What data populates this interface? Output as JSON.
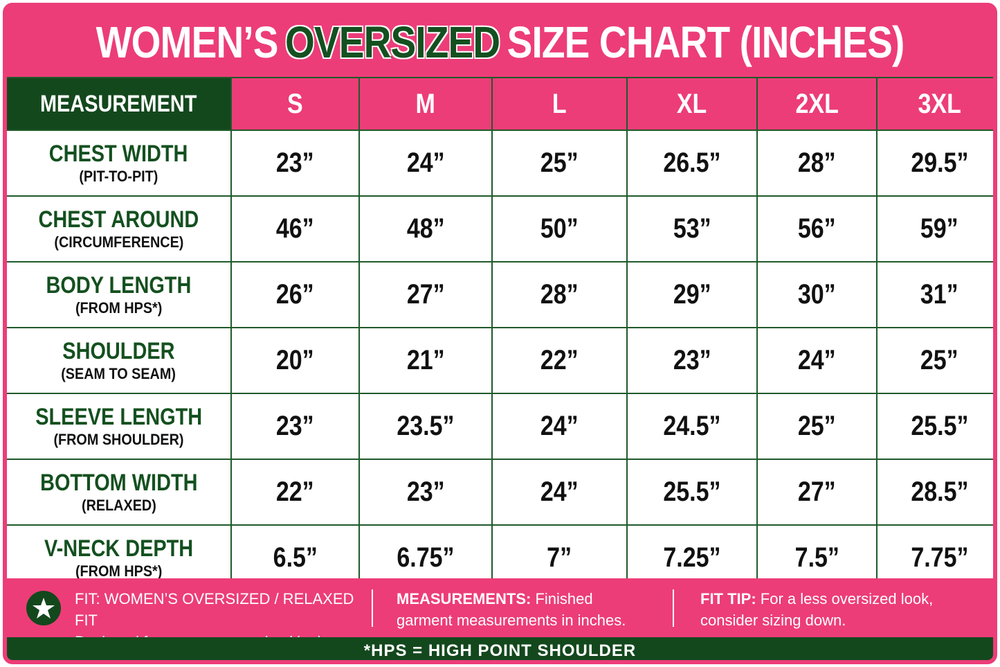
{
  "title": {
    "before": "WOMEN’S",
    "highlight": "OVERSIZED",
    "after": "SIZE CHART (INCHES)"
  },
  "table": {
    "header": [
      "MEASUREMENT",
      "S",
      "M",
      "L",
      "XL",
      "2XL",
      "3XL"
    ],
    "rows": [
      {
        "name": "CHEST WIDTH",
        "sub": "(PIT-TO-PIT)",
        "values": [
          "23”",
          "24”",
          "25”",
          "26.5”",
          "28”",
          "29.5”"
        ]
      },
      {
        "name": "CHEST AROUND",
        "sub": "(CIRCUMFERENCE)",
        "values": [
          "46”",
          "48”",
          "50”",
          "53”",
          "56”",
          "59”"
        ]
      },
      {
        "name": "BODY LENGTH",
        "sub": "(FROM HPS*)",
        "values": [
          "26”",
          "27”",
          "28”",
          "29”",
          "30”",
          "31”"
        ]
      },
      {
        "name": "SHOULDER",
        "sub": "(SEAM TO SEAM)",
        "values": [
          "20”",
          "21”",
          "22”",
          "23”",
          "24”",
          "25”"
        ]
      },
      {
        "name": "SLEEVE LENGTH",
        "sub": "(FROM SHOULDER)",
        "values": [
          "23”",
          "23.5”",
          "24”",
          "24.5”",
          "25”",
          "25.5”"
        ]
      },
      {
        "name": "BOTTOM WIDTH",
        "sub": "(RELAXED)",
        "values": [
          "22”",
          "23”",
          "24”",
          "25.5”",
          "27”",
          "28.5”"
        ]
      },
      {
        "name": "V-NECK DEPTH",
        "sub": "(FROM HPS*)",
        "values": [
          "6.5”",
          "6.75”",
          "7”",
          "7.25”",
          "7.5”",
          "7.75”"
        ]
      }
    ]
  },
  "notes": [
    {
      "label": "FIT: WOMEN’S OVERSIZED / RELAXED FIT",
      "text": "Designed for a roomy, oversized look."
    },
    {
      "label": "MEASUREMENTS:",
      "text": "Finished garment measurements in inches."
    },
    {
      "label": "FIT TIP:",
      "text": "For a less oversized look, consider sizing down."
    }
  ],
  "footnote": "*HPS = HIGH POINT SHOULDER"
}
